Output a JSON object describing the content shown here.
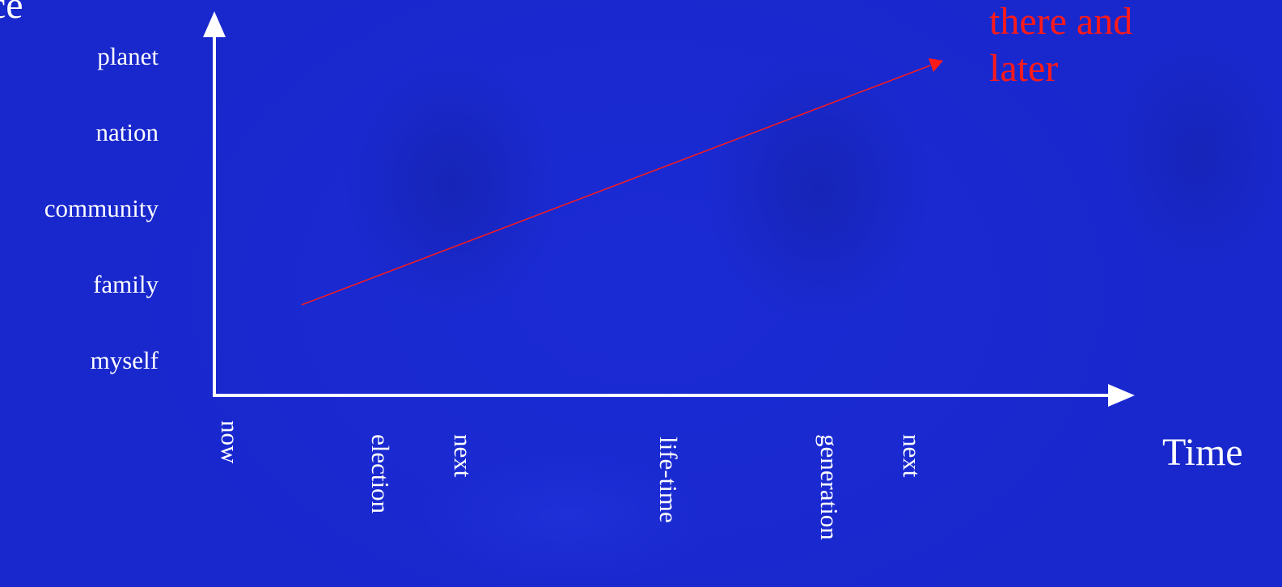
{
  "title_fragment": "ce",
  "scope_levels": [
    "planet",
    "nation",
    "community",
    "family",
    "myself"
  ],
  "time_markers": [
    {
      "lines": [
        "now"
      ]
    },
    {
      "lines": [
        "next",
        "election"
      ]
    },
    {
      "lines": [
        "life-time"
      ]
    },
    {
      "lines": [
        "next",
        "generation"
      ]
    }
  ],
  "x_axis_label": "Time",
  "annotation": {
    "line1": "there and",
    "line2": "later"
  },
  "colors": {
    "background": "#1a2ad0",
    "axes": "#ffffff",
    "trend_arrow": "#ff1a1a",
    "annotation": "#ff1a1a"
  }
}
